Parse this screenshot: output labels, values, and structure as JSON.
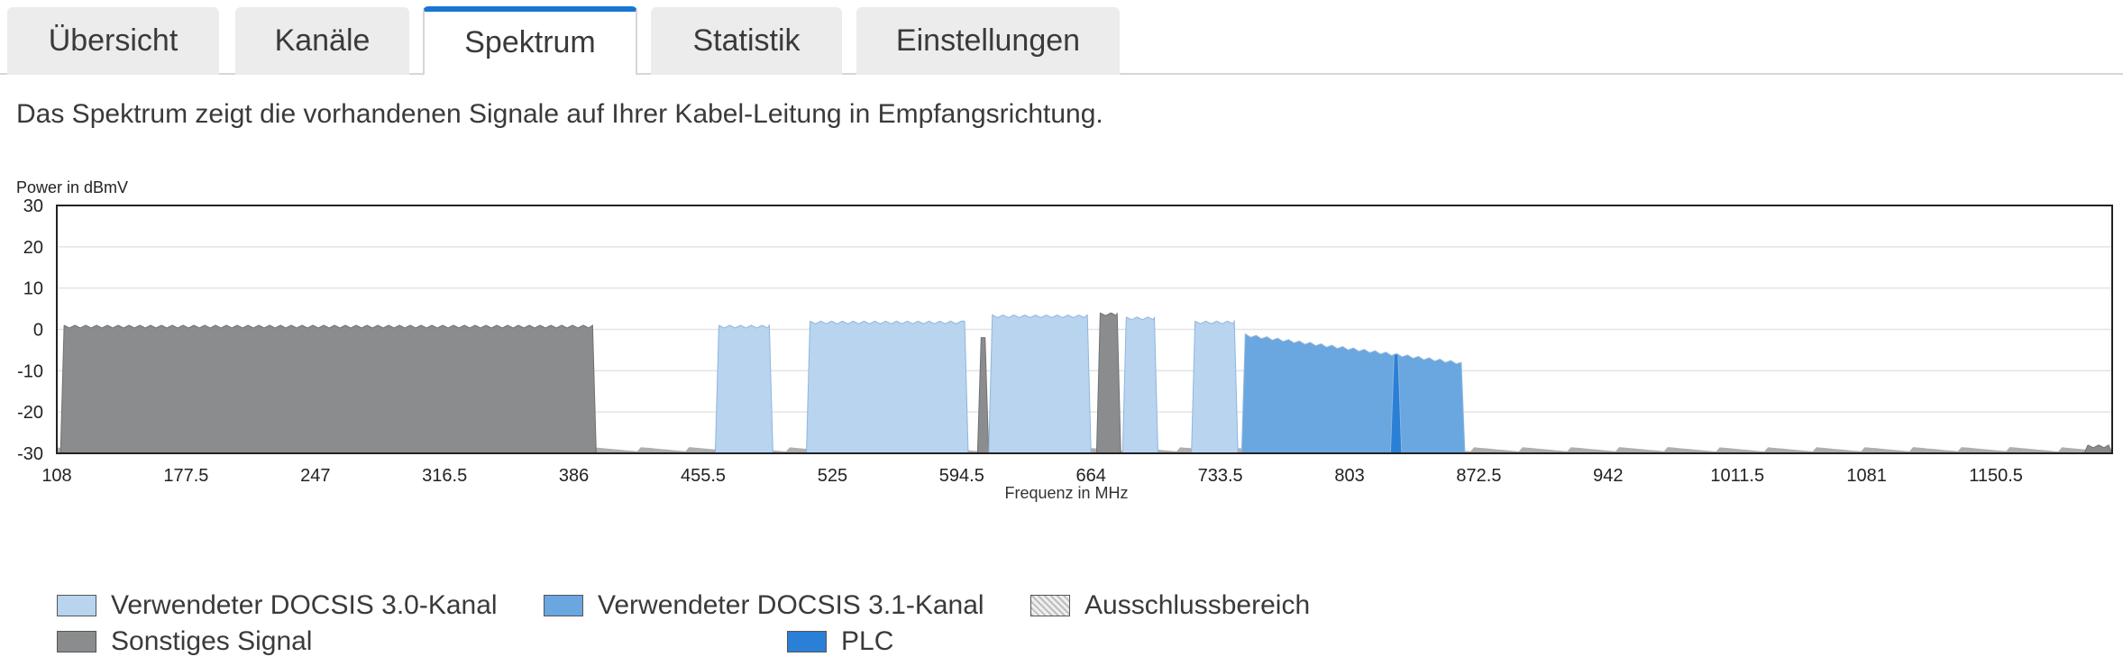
{
  "tabs": [
    {
      "label": "Übersicht",
      "active": false
    },
    {
      "label": "Kanäle",
      "active": false
    },
    {
      "label": "Spektrum",
      "active": true
    },
    {
      "label": "Statistik",
      "active": false
    },
    {
      "label": "Einstellungen",
      "active": false
    }
  ],
  "description": "Das Spektrum zeigt die vorhandenen Signale auf Ihrer Kabel-Leitung in Empfangsrichtung.",
  "colors": {
    "accent": "#1976d2",
    "docsis30": "#b8d4ef",
    "docsis31": "#6aa6e0",
    "other": "#8a8c8e",
    "plc": "#2a7fd6",
    "exclusion": "#d0d0d0"
  },
  "legend": [
    {
      "label": "Verwendeter DOCSIS 3.0-Kanal",
      "kind": "docsis30"
    },
    {
      "label": "Verwendeter DOCSIS 3.1-Kanal",
      "kind": "docsis31"
    },
    {
      "label": "Ausschlussbereich",
      "kind": "exclusion"
    },
    {
      "label": "Sonstiges Signal",
      "kind": "other"
    },
    {
      "label": "PLC",
      "kind": "plc"
    }
  ],
  "chart_data": {
    "type": "area",
    "title": "",
    "ylabel": "Power in dBmV",
    "xlabel": "Frequenz in MHz",
    "ylim": [
      -30,
      30
    ],
    "xlim": [
      108,
      1213
    ],
    "yticks": [
      30,
      20,
      10,
      0,
      -10,
      -20,
      -30
    ],
    "xticks": [
      "108",
      "177.5",
      "247",
      "316.5",
      "386",
      "455.5",
      "525",
      "594.5",
      "664",
      "733.5",
      "803",
      "872.5",
      "942",
      "1011.5",
      "1081",
      "1150.5"
    ],
    "grid": true,
    "series": [
      {
        "name": "Sonstiges Signal",
        "kind": "other",
        "bands": [
          {
            "start": 110,
            "end": 398,
            "level": 1.0
          },
          {
            "start": 603,
            "end": 609,
            "level": -2.0
          },
          {
            "start": 667,
            "end": 680,
            "level": 4.0
          },
          {
            "start": 1198,
            "end": 1213,
            "level": -28.0
          }
        ]
      },
      {
        "name": "Verwendeter DOCSIS 3.0-Kanal",
        "kind": "docsis30",
        "bands": [
          {
            "start": 462,
            "end": 493,
            "level": 1.0
          },
          {
            "start": 511,
            "end": 598,
            "level": 2.0
          },
          {
            "start": 609,
            "end": 664,
            "level": 3.5
          },
          {
            "start": 681,
            "end": 700,
            "level": 3.0
          },
          {
            "start": 718,
            "end": 743,
            "level": 2.0
          }
        ]
      },
      {
        "name": "Verwendeter DOCSIS 3.1-Kanal",
        "kind": "docsis31",
        "bands": [
          {
            "start": 745,
            "end": 865,
            "level_start": -1.0,
            "level_end": -8.0
          }
        ]
      },
      {
        "name": "PLC",
        "kind": "plc",
        "bands": [
          {
            "start": 825,
            "end": 831,
            "level": -6.0
          }
        ]
      }
    ]
  }
}
